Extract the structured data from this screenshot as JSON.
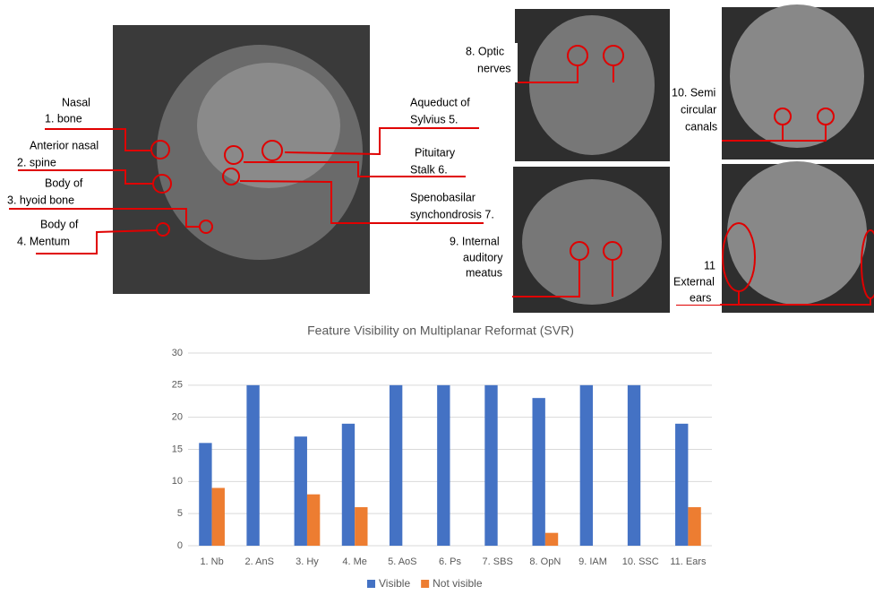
{
  "annotations": [
    "Nasal",
    "1.  bone",
    "Anterior nasal",
    "2. spine",
    "Body of",
    "3. hyoid bone",
    "Body of",
    "4. Mentum",
    "Aqueduct of",
    "Sylvius  5.",
    "Pituitary",
    "Stalk  6.",
    "Spenobasilar",
    "synchondrosis 7.",
    "8. Optic",
    "nerves",
    "10. Semi",
    "circular",
    "canals",
    "9. Internal",
    "auditory",
    "meatus",
    "11",
    "External",
    "ears"
  ],
  "chart_data": {
    "type": "bar",
    "title": "Feature Visibility on Multiplanar Reformat (SVR)",
    "categories": [
      "1. Nb",
      "2. AnS",
      "3. Hy",
      "4. Me",
      "5. AoS",
      "6. Ps",
      "7. SBS",
      "8. OpN",
      "9. IAM",
      "10. SSC",
      "11. Ears"
    ],
    "series": [
      {
        "name": "Visible",
        "color": "#4472c4",
        "values": [
          16,
          25,
          17,
          19,
          25,
          25,
          25,
          23,
          25,
          25,
          19
        ]
      },
      {
        "name": "Not visible",
        "color": "#ed7d31",
        "values": [
          9,
          0,
          8,
          6,
          0,
          0,
          0,
          2,
          0,
          0,
          6
        ]
      }
    ],
    "ylim": [
      0,
      30
    ],
    "yticks": [
      0,
      5,
      10,
      15,
      20,
      25,
      30
    ],
    "grid": true,
    "legend": "bottom"
  }
}
